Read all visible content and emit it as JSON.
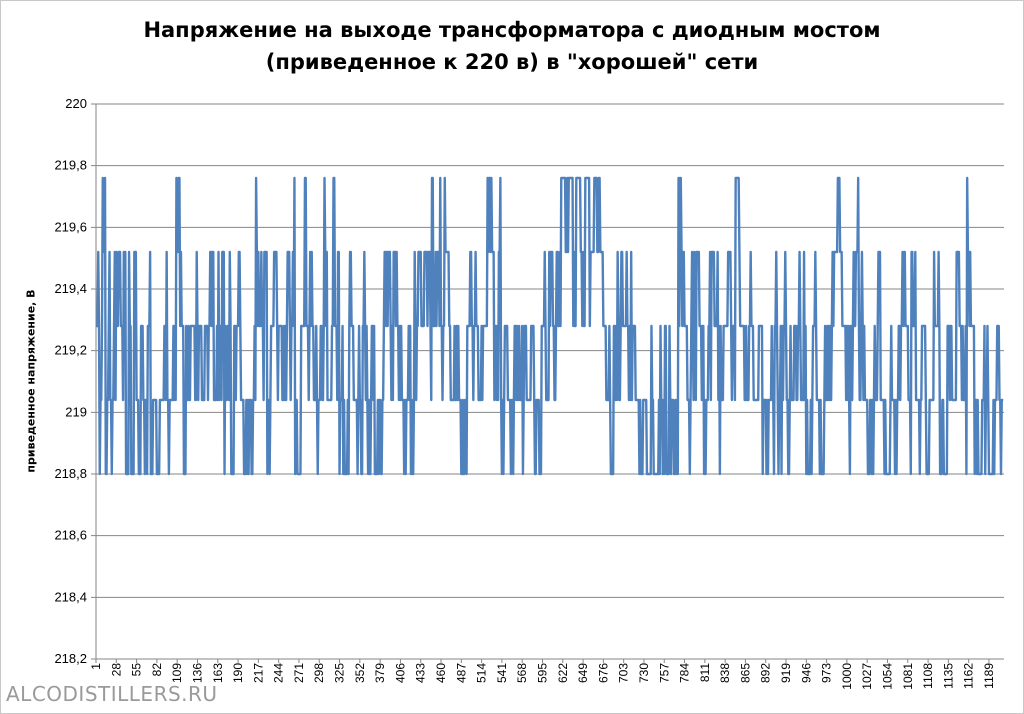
{
  "chart_data": {
    "type": "line",
    "title": "Напряжение на выходе трансформатора с диодным мостом (приведенное к 220 в) в \"хорошей\" сети",
    "title_lines": [
      "Напряжение на выходе трансформатора с диодным мостом",
      "(приведенное к 220 в) в \"хорошей\" сети"
    ],
    "xlabel": "",
    "ylabel": "приведенное напряжение, В",
    "ylim": [
      218.2,
      220
    ],
    "xlim": [
      1,
      1209
    ],
    "grid": "horizontal",
    "legend": "none",
    "line_color": "#4f81bd",
    "y_ticks": [
      "218,2",
      "218,4",
      "218,6",
      "218,8",
      "219",
      "219,2",
      "219,4",
      "219,6",
      "219,8",
      "220"
    ],
    "x_ticks": [
      "1",
      "28",
      "55",
      "82",
      "109",
      "136",
      "163",
      "190",
      "217",
      "244",
      "271",
      "298",
      "325",
      "352",
      "379",
      "406",
      "433",
      "460",
      "487",
      "514",
      "541",
      "568",
      "595",
      "622",
      "649",
      "676",
      "703",
      "730",
      "757",
      "784",
      "811",
      "838",
      "865",
      "892",
      "919",
      "946",
      "973",
      "1000",
      "1027",
      "1054",
      "1081",
      "1108",
      "1135",
      "1162",
      "1189"
    ],
    "levels": [
      218.8,
      219.04,
      219.28,
      219.52,
      219.76
    ],
    "base_level_index": 2,
    "series_runs": [
      [
        1,
        2
      ],
      [
        6,
        0
      ],
      [
        9,
        3
      ],
      [
        14,
        0
      ],
      [
        16,
        2
      ],
      [
        20,
        1
      ],
      [
        25,
        2
      ],
      [
        28,
        3
      ],
      [
        33,
        2
      ],
      [
        38,
        3
      ],
      [
        41,
        0
      ],
      [
        45,
        2
      ],
      [
        48,
        0
      ],
      [
        52,
        3
      ],
      [
        55,
        1
      ],
      [
        58,
        0
      ],
      [
        61,
        2
      ],
      [
        64,
        1
      ],
      [
        70,
        2
      ],
      [
        74,
        0
      ],
      [
        77,
        1
      ],
      [
        82,
        0
      ],
      [
        86,
        1
      ],
      [
        92,
        2
      ],
      [
        96,
        1
      ],
      [
        104,
        2
      ],
      [
        108,
        3
      ],
      [
        111,
        4
      ],
      [
        113,
        2
      ],
      [
        118,
        0
      ],
      [
        121,
        1
      ],
      [
        128,
        2
      ],
      [
        131,
        1
      ],
      [
        135,
        3
      ],
      [
        137,
        2
      ],
      [
        142,
        1
      ],
      [
        148,
        2
      ],
      [
        153,
        3
      ],
      [
        158,
        1
      ],
      [
        164,
        2
      ],
      [
        169,
        3
      ],
      [
        172,
        1
      ],
      [
        176,
        2
      ],
      [
        181,
        0
      ],
      [
        185,
        2
      ],
      [
        191,
        3
      ],
      [
        194,
        1
      ],
      [
        198,
        0
      ],
      [
        203,
        1
      ],
      [
        210,
        2
      ],
      [
        214,
        3
      ],
      [
        218,
        2
      ],
      [
        225,
        3
      ],
      [
        229,
        1
      ],
      [
        233,
        2
      ],
      [
        238,
        3
      ],
      [
        241,
        2
      ],
      [
        248,
        1
      ],
      [
        256,
        2
      ],
      [
        262,
        3
      ],
      [
        266,
        1
      ],
      [
        270,
        0
      ],
      [
        274,
        2
      ],
      [
        279,
        4
      ],
      [
        281,
        2
      ],
      [
        286,
        3
      ],
      [
        291,
        1
      ],
      [
        296,
        0
      ],
      [
        300,
        2
      ],
      [
        305,
        3
      ],
      [
        309,
        1
      ],
      [
        314,
        2
      ],
      [
        317,
        4
      ],
      [
        319,
        2
      ],
      [
        325,
        1
      ],
      [
        333,
        0
      ],
      [
        338,
        2
      ],
      [
        344,
        1
      ],
      [
        352,
        0
      ],
      [
        356,
        2
      ],
      [
        360,
        1
      ],
      [
        368,
        2
      ],
      [
        372,
        0
      ],
      [
        376,
        1
      ],
      [
        384,
        2
      ],
      [
        390,
        3
      ],
      [
        394,
        2
      ],
      [
        398,
        3
      ],
      [
        402,
        2
      ],
      [
        408,
        1
      ],
      [
        414,
        2
      ],
      [
        420,
        0
      ],
      [
        424,
        2
      ],
      [
        430,
        3
      ],
      [
        432,
        2
      ],
      [
        438,
        3
      ],
      [
        444,
        2
      ],
      [
        448,
        4
      ],
      [
        450,
        2
      ],
      [
        456,
        3
      ],
      [
        460,
        2
      ],
      [
        465,
        3
      ],
      [
        470,
        2
      ],
      [
        474,
        1
      ],
      [
        480,
        2
      ],
      [
        486,
        1
      ],
      [
        491,
        0
      ],
      [
        495,
        2
      ],
      [
        499,
        3
      ],
      [
        503,
        2
      ],
      [
        508,
        1
      ],
      [
        516,
        2
      ],
      [
        522,
        4
      ],
      [
        527,
        3
      ],
      [
        531,
        2
      ],
      [
        537,
        3
      ],
      [
        540,
        1
      ],
      [
        545,
        2
      ],
      [
        550,
        1
      ],
      [
        558,
        2
      ],
      [
        562,
        1
      ],
      [
        570,
        2
      ],
      [
        575,
        1
      ],
      [
        580,
        2
      ],
      [
        584,
        0
      ],
      [
        588,
        1
      ],
      [
        594,
        2
      ],
      [
        600,
        1
      ],
      [
        604,
        3
      ],
      [
        609,
        2
      ],
      [
        614,
        3
      ],
      [
        620,
        4
      ],
      [
        626,
        3
      ],
      [
        630,
        4
      ],
      [
        636,
        3
      ],
      [
        640,
        4
      ],
      [
        646,
        3
      ],
      [
        652,
        4
      ],
      [
        658,
        3
      ],
      [
        664,
        4
      ],
      [
        672,
        3
      ],
      [
        676,
        2
      ],
      [
        681,
        1
      ],
      [
        686,
        0
      ],
      [
        690,
        2
      ],
      [
        696,
        1
      ],
      [
        700,
        3
      ],
      [
        704,
        2
      ],
      [
        708,
        1
      ],
      [
        713,
        2
      ],
      [
        719,
        1
      ],
      [
        724,
        0
      ],
      [
        729,
        1
      ],
      [
        734,
        0
      ],
      [
        740,
        1
      ],
      [
        746,
        0
      ],
      [
        752,
        2
      ],
      [
        755,
        1
      ],
      [
        760,
        0
      ],
      [
        764,
        1
      ],
      [
        770,
        0
      ],
      [
        776,
        3
      ],
      [
        778,
        4
      ],
      [
        780,
        3
      ],
      [
        784,
        2
      ],
      [
        788,
        1
      ],
      [
        793,
        2
      ],
      [
        800,
        3
      ],
      [
        804,
        2
      ],
      [
        810,
        1
      ],
      [
        814,
        2
      ],
      [
        820,
        3
      ],
      [
        824,
        2
      ],
      [
        830,
        1
      ],
      [
        836,
        2
      ],
      [
        842,
        3
      ],
      [
        846,
        2
      ],
      [
        852,
        4
      ],
      [
        855,
        3
      ],
      [
        858,
        2
      ],
      [
        864,
        1
      ],
      [
        870,
        2
      ],
      [
        876,
        1
      ],
      [
        884,
        2
      ],
      [
        888,
        1
      ],
      [
        892,
        0
      ],
      [
        896,
        1
      ],
      [
        904,
        2
      ],
      [
        908,
        1
      ],
      [
        914,
        2
      ],
      [
        920,
        1
      ],
      [
        930,
        2
      ],
      [
        935,
        3
      ],
      [
        938,
        2
      ],
      [
        944,
        1
      ],
      [
        950,
        0
      ],
      [
        954,
        2
      ],
      [
        960,
        1
      ],
      [
        966,
        0
      ],
      [
        970,
        1
      ],
      [
        976,
        2
      ],
      [
        984,
        3
      ],
      [
        988,
        4
      ],
      [
        991,
        3
      ],
      [
        994,
        2
      ],
      [
        1000,
        1
      ],
      [
        1006,
        2
      ],
      [
        1012,
        3
      ],
      [
        1016,
        2
      ],
      [
        1024,
        1
      ],
      [
        1030,
        0
      ],
      [
        1034,
        1
      ],
      [
        1040,
        2
      ],
      [
        1046,
        1
      ],
      [
        1052,
        0
      ],
      [
        1058,
        1
      ],
      [
        1064,
        0
      ],
      [
        1068,
        2
      ],
      [
        1074,
        3
      ],
      [
        1078,
        2
      ],
      [
        1082,
        1
      ],
      [
        1086,
        3
      ],
      [
        1088,
        2
      ],
      [
        1092,
        1
      ],
      [
        1100,
        2
      ],
      [
        1106,
        0
      ],
      [
        1110,
        1
      ],
      [
        1116,
        2
      ],
      [
        1124,
        1
      ],
      [
        1130,
        0
      ],
      [
        1134,
        2
      ],
      [
        1140,
        1
      ],
      [
        1146,
        3
      ],
      [
        1150,
        2
      ],
      [
        1155,
        1
      ],
      [
        1160,
        3
      ],
      [
        1164,
        2
      ],
      [
        1170,
        1
      ],
      [
        1176,
        0
      ],
      [
        1180,
        1
      ],
      [
        1189,
        0
      ],
      [
        1194,
        1
      ],
      [
        1200,
        1
      ]
    ]
  },
  "watermark": "ALCODISTILLERS.RU"
}
